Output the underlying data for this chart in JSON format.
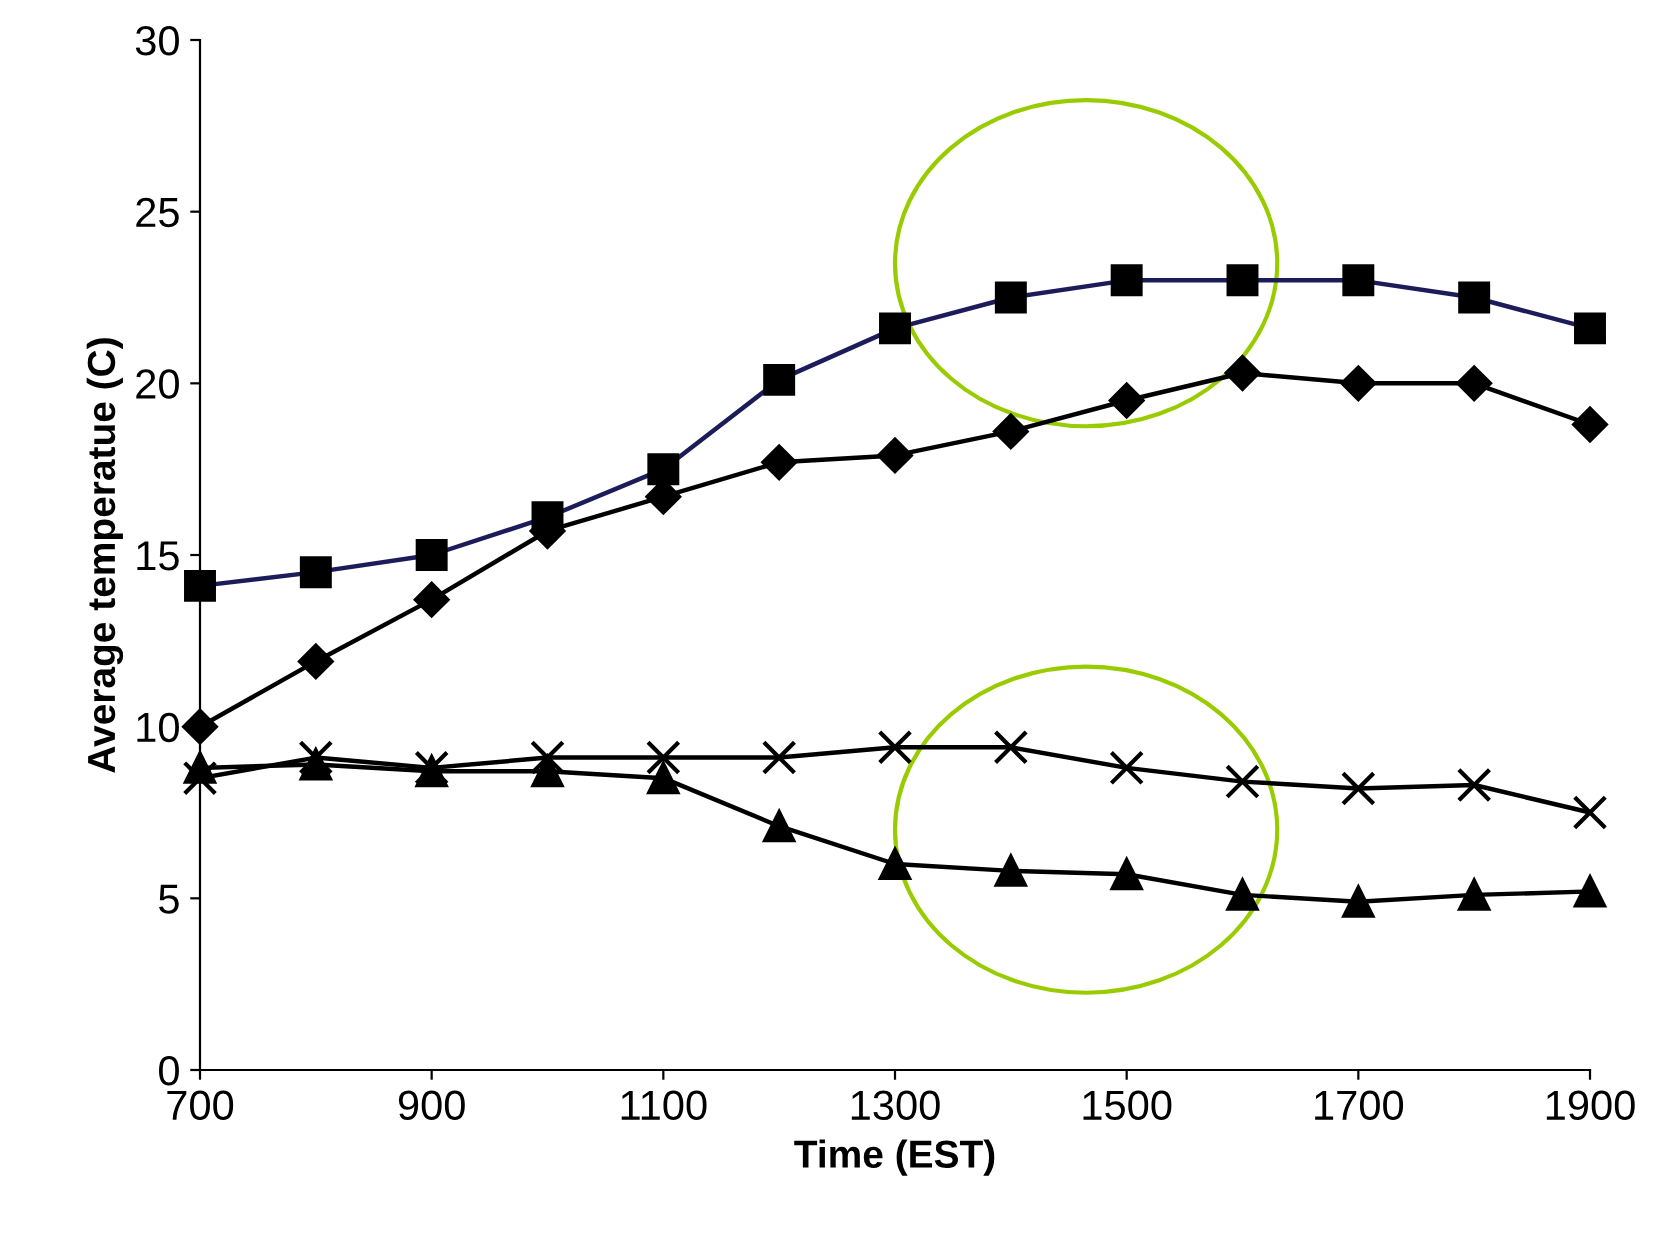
{
  "chart_data": {
    "type": "line",
    "xlabel": "Time (EST)",
    "ylabel": "Average temperatue (C)",
    "x": [
      700,
      800,
      900,
      1000,
      1100,
      1200,
      1300,
      1400,
      1500,
      1600,
      1700,
      1800,
      1900
    ],
    "series": [
      {
        "color": "#1c1c5a",
        "marker": "square",
        "values": [
          14.1,
          14.5,
          15.0,
          16.1,
          17.5,
          20.1,
          21.6,
          22.5,
          23.0,
          23.0,
          23.0,
          22.5,
          21.6
        ]
      },
      {
        "color": "#000000",
        "marker": "diamond",
        "values": [
          10.0,
          11.9,
          13.7,
          15.7,
          16.7,
          17.7,
          17.9,
          18.6,
          19.5,
          20.3,
          20.0,
          20.0,
          18.8
        ]
      },
      {
        "color": "#000000",
        "marker": "cross",
        "values": [
          8.5,
          9.1,
          8.8,
          9.1,
          9.1,
          9.1,
          9.4,
          9.4,
          8.8,
          8.4,
          8.2,
          8.3,
          7.5
        ]
      },
      {
        "color": "#000000",
        "marker": "triangle",
        "values": [
          8.8,
          8.9,
          8.7,
          8.7,
          8.5,
          7.1,
          6.0,
          5.8,
          5.7,
          5.1,
          4.9,
          5.1,
          5.2
        ]
      }
    ],
    "xlim": [
      700,
      1900
    ],
    "xticks": [
      700,
      900,
      1100,
      1300,
      1500,
      1700,
      1900
    ],
    "ylim": [
      0,
      30
    ],
    "yticks": [
      0,
      5,
      10,
      15,
      20,
      25,
      30
    ],
    "grid": false,
    "legend": false,
    "line_style": "solid"
  }
}
